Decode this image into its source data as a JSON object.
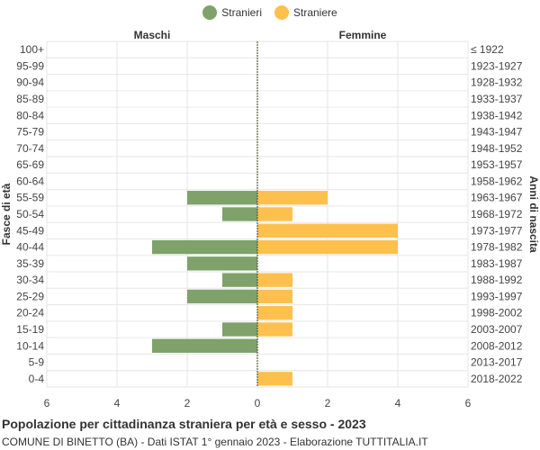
{
  "legend": [
    {
      "name": "Stranieri",
      "color": "#7ea26a"
    },
    {
      "name": "Straniere",
      "color": "#fdc04d"
    }
  ],
  "footer": {
    "title": "Popolazione per cittadinanza straniera per età e sesso - 2023",
    "subtitle": "COMUNE DI BINETTO (BA) - Dati ISTAT 1° gennaio 2023 - Elaborazione TUTTITALIA.IT"
  },
  "chart_data": {
    "type": "bar",
    "orientation": "horizontal-population-pyramid",
    "left_header": "Maschi",
    "right_header": "Femmine",
    "ylabel_left": "Fasce di età",
    "ylabel_right": "Anni di nascita",
    "age_groups": [
      "100+",
      "95-99",
      "90-94",
      "85-89",
      "80-84",
      "75-79",
      "70-74",
      "65-69",
      "60-64",
      "55-59",
      "50-54",
      "45-49",
      "40-44",
      "35-39",
      "30-34",
      "25-29",
      "20-24",
      "15-19",
      "10-14",
      "5-9",
      "0-4"
    ],
    "birth_years": [
      "≤ 1922",
      "1923-1927",
      "1928-1932",
      "1933-1937",
      "1938-1942",
      "1943-1947",
      "1948-1952",
      "1953-1957",
      "1958-1962",
      "1963-1967",
      "1968-1972",
      "1973-1977",
      "1978-1982",
      "1983-1987",
      "1988-1992",
      "1993-1997",
      "1998-2002",
      "2003-2007",
      "2008-2012",
      "2013-2017",
      "2018-2022"
    ],
    "series": [
      {
        "name": "Stranieri",
        "values": [
          0,
          0,
          0,
          0,
          0,
          0,
          0,
          0,
          0,
          2,
          1,
          0,
          3,
          2,
          1,
          2,
          0,
          1,
          3,
          0,
          0
        ]
      },
      {
        "name": "Straniere",
        "values": [
          0,
          0,
          0,
          0,
          0,
          0,
          0,
          0,
          0,
          2,
          1,
          4,
          4,
          0,
          1,
          1,
          1,
          1,
          0,
          0,
          1
        ]
      }
    ],
    "x_ticks": [
      "6",
      "4",
      "2",
      "0",
      "2",
      "4",
      "6"
    ],
    "xlim": [
      -6,
      6
    ],
    "grid": true
  }
}
